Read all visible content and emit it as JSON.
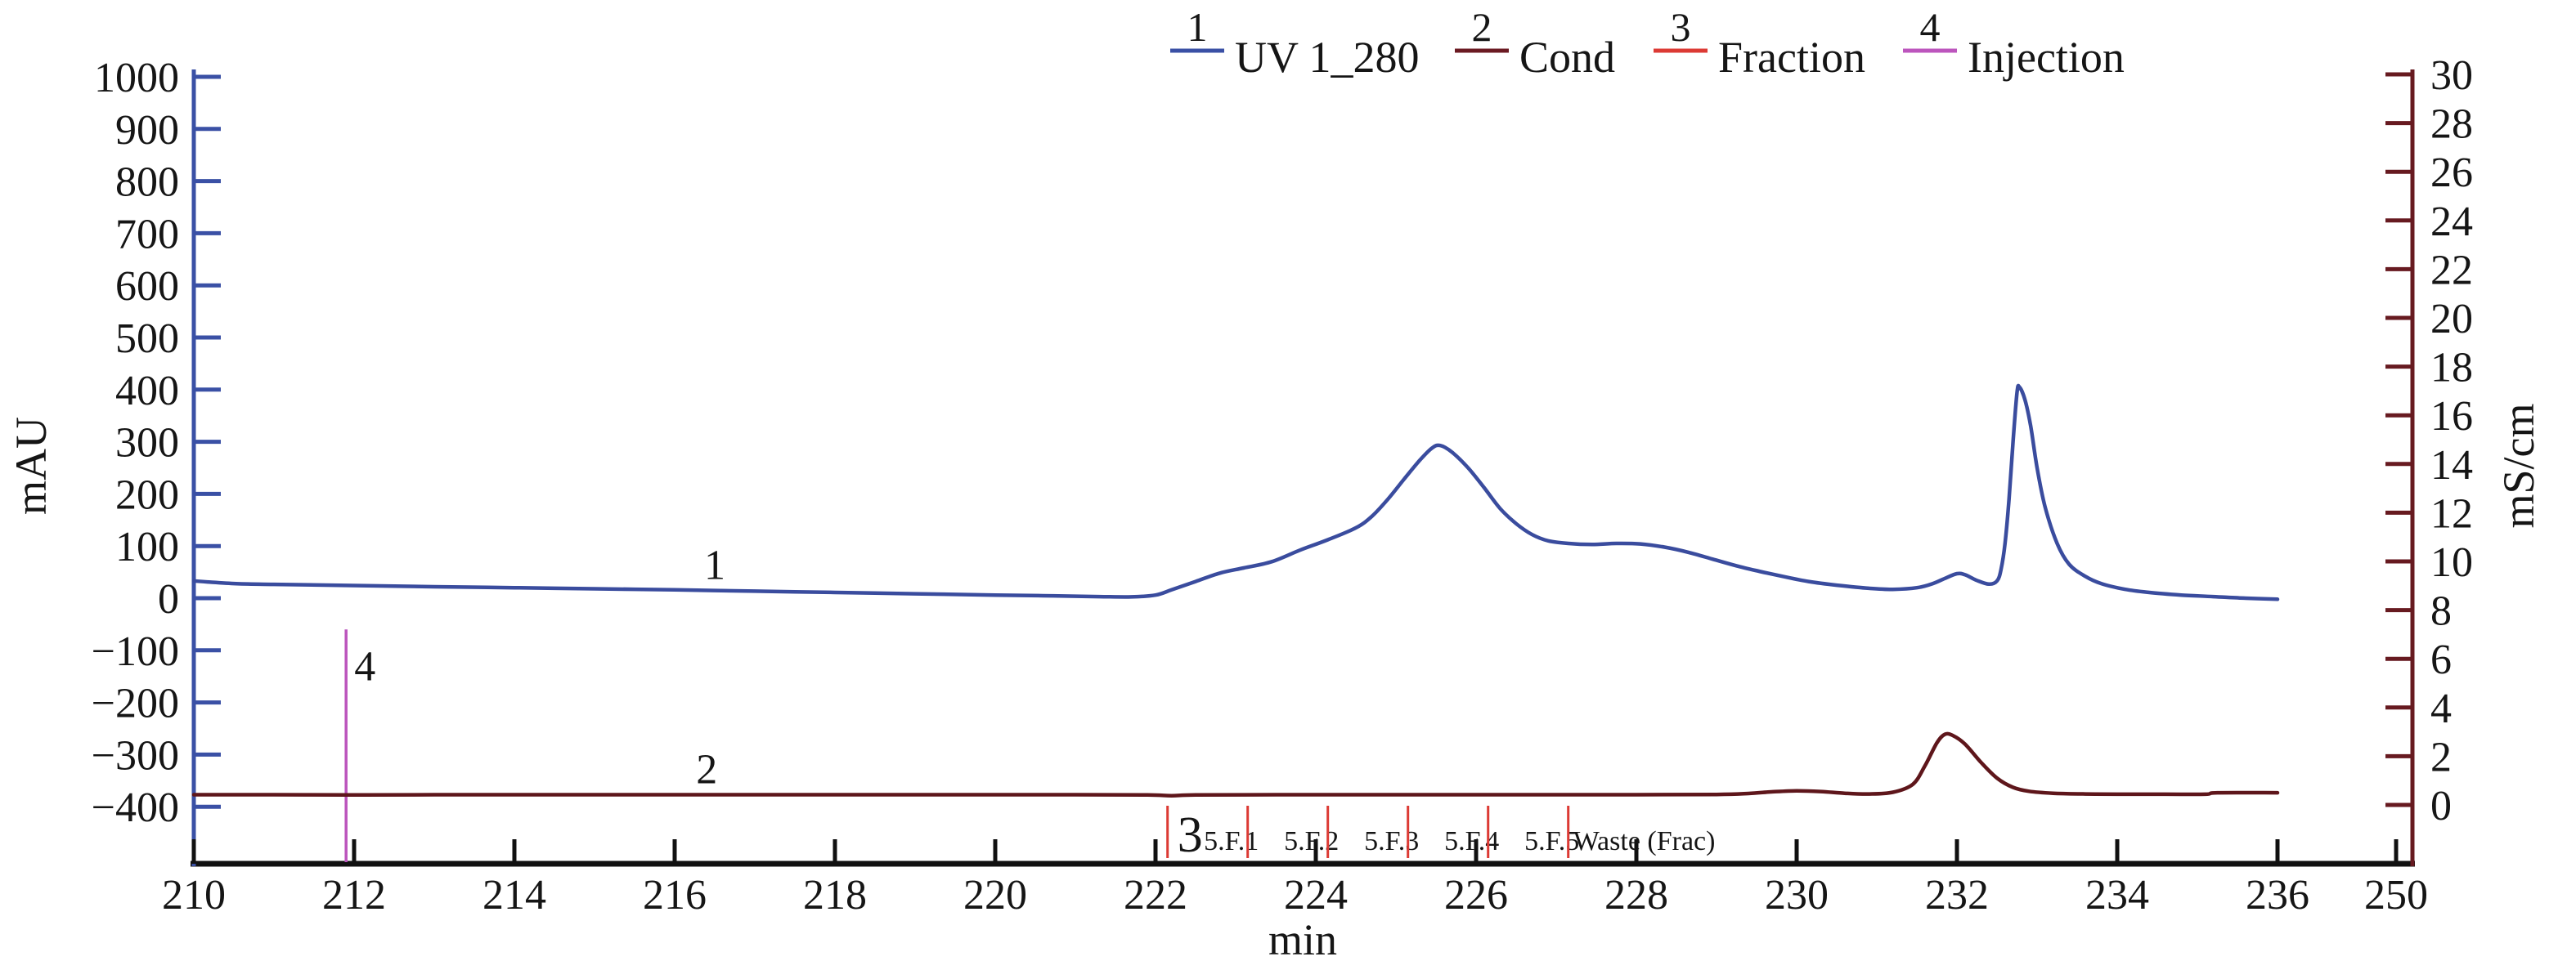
{
  "chart_data": {
    "type": "line",
    "title": "",
    "xlabel": "min",
    "xlim": [
      210,
      250
    ],
    "x_ticks": [
      210,
      212,
      214,
      216,
      218,
      220,
      222,
      224,
      226,
      228,
      230,
      232,
      234,
      236
    ],
    "x_break_tick": 250,
    "grid": false,
    "legend_position": "top",
    "left_axis": {
      "label": "mAU",
      "color": "#3A50A5",
      "ticks": [
        1000,
        900,
        800,
        700,
        600,
        500,
        400,
        300,
        200,
        100,
        0,
        -100,
        -200,
        -300,
        -400
      ],
      "lim": [
        -480,
        1010
      ]
    },
    "right_axis": {
      "label": "mS/cm",
      "color": "#671A20",
      "ticks": [
        30,
        28,
        26,
        24,
        22,
        20,
        18,
        16,
        14,
        12,
        10,
        8,
        6,
        4,
        2,
        0
      ],
      "lim": [
        -2.4,
        30.2
      ]
    },
    "legend": [
      {
        "index": "1",
        "label": "UV 1_280",
        "color": "#2F4DA8",
        "line_color": "#3A50A5"
      },
      {
        "index": "2",
        "label": "Cond",
        "color": "#6B1A22",
        "line_color": "#6B1A22"
      },
      {
        "index": "3",
        "label": "Fraction",
        "color": "#DC3A34",
        "line_color": "#DC3A34"
      },
      {
        "index": "4",
        "label": "Injection",
        "color": "#BC55BD",
        "line_color": "#BC55BD"
      }
    ],
    "series": [
      {
        "name": "UV 1_280",
        "axis": "left",
        "unit": "mAU",
        "color": "#3A4C9E",
        "curve_label": "1",
        "curve_label_time_min": 216.5,
        "points": [
          [
            210.0,
            33
          ],
          [
            210.5,
            28
          ],
          [
            211.0,
            26.5
          ],
          [
            211.9,
            24.5
          ],
          [
            213.0,
            22
          ],
          [
            214.0,
            20
          ],
          [
            215.0,
            18
          ],
          [
            216.0,
            16
          ],
          [
            217.0,
            13.5
          ],
          [
            218.0,
            11
          ],
          [
            219.0,
            8.5
          ],
          [
            220.0,
            6
          ],
          [
            220.7,
            4.5
          ],
          [
            221.3,
            3
          ],
          [
            221.7,
            2.5
          ],
          [
            222.0,
            6
          ],
          [
            222.2,
            16
          ],
          [
            222.5,
            32
          ],
          [
            222.8,
            48
          ],
          [
            223.1,
            58
          ],
          [
            223.45,
            70
          ],
          [
            223.8,
            92
          ],
          [
            224.15,
            112
          ],
          [
            224.5,
            135
          ],
          [
            224.7,
            157
          ],
          [
            224.9,
            190
          ],
          [
            225.1,
            228
          ],
          [
            225.3,
            265
          ],
          [
            225.45,
            288
          ],
          [
            225.55,
            293
          ],
          [
            225.7,
            280
          ],
          [
            225.9,
            250
          ],
          [
            226.1,
            212
          ],
          [
            226.3,
            172
          ],
          [
            226.5,
            143
          ],
          [
            226.7,
            122
          ],
          [
            226.9,
            110
          ],
          [
            227.15,
            105
          ],
          [
            227.45,
            103
          ],
          [
            227.75,
            105
          ],
          [
            228.05,
            104
          ],
          [
            228.35,
            98
          ],
          [
            228.65,
            88
          ],
          [
            228.95,
            75
          ],
          [
            229.25,
            62
          ],
          [
            229.55,
            51
          ],
          [
            229.85,
            41
          ],
          [
            230.15,
            32
          ],
          [
            230.5,
            25
          ],
          [
            230.9,
            19
          ],
          [
            231.2,
            17
          ],
          [
            231.5,
            20
          ],
          [
            231.7,
            28
          ],
          [
            231.85,
            38
          ],
          [
            232.0,
            47
          ],
          [
            232.1,
            45
          ],
          [
            232.25,
            34
          ],
          [
            232.4,
            27
          ],
          [
            232.5,
            33
          ],
          [
            232.55,
            55
          ],
          [
            232.6,
            105
          ],
          [
            232.65,
            190
          ],
          [
            232.7,
            300
          ],
          [
            232.75,
            395
          ],
          [
            232.78,
            405
          ],
          [
            232.85,
            380
          ],
          [
            232.92,
            330
          ],
          [
            233.0,
            250
          ],
          [
            233.1,
            175
          ],
          [
            233.25,
            105
          ],
          [
            233.4,
            65
          ],
          [
            233.6,
            42
          ],
          [
            233.8,
            28
          ],
          [
            234.1,
            17
          ],
          [
            234.4,
            11
          ],
          [
            234.8,
            6
          ],
          [
            235.2,
            3
          ],
          [
            235.6,
            0
          ],
          [
            236.0,
            -2
          ]
        ]
      },
      {
        "name": "Cond",
        "axis": "right",
        "unit": "mS/cm",
        "color": "#5E161B",
        "curve_label": "2",
        "curve_label_time_min": 216.4,
        "points": [
          [
            210.0,
            0.42
          ],
          [
            211.0,
            0.42
          ],
          [
            211.9,
            0.41
          ],
          [
            213.0,
            0.42
          ],
          [
            215.0,
            0.42
          ],
          [
            217.0,
            0.42
          ],
          [
            219.0,
            0.42
          ],
          [
            221.0,
            0.42
          ],
          [
            221.9,
            0.41
          ],
          [
            222.2,
            0.38
          ],
          [
            222.5,
            0.41
          ],
          [
            223.5,
            0.42
          ],
          [
            225.0,
            0.42
          ],
          [
            226.5,
            0.42
          ],
          [
            228.0,
            0.42
          ],
          [
            229.0,
            0.43
          ],
          [
            229.4,
            0.47
          ],
          [
            229.7,
            0.54
          ],
          [
            230.0,
            0.58
          ],
          [
            230.3,
            0.55
          ],
          [
            230.6,
            0.48
          ],
          [
            230.9,
            0.45
          ],
          [
            231.2,
            0.52
          ],
          [
            231.45,
            0.85
          ],
          [
            231.6,
            1.6
          ],
          [
            231.75,
            2.55
          ],
          [
            231.85,
            2.9
          ],
          [
            231.95,
            2.85
          ],
          [
            232.1,
            2.5
          ],
          [
            232.3,
            1.75
          ],
          [
            232.5,
            1.1
          ],
          [
            232.7,
            0.72
          ],
          [
            232.9,
            0.56
          ],
          [
            233.2,
            0.48
          ],
          [
            233.6,
            0.45
          ],
          [
            234.0,
            0.44
          ],
          [
            234.6,
            0.44
          ],
          [
            235.1,
            0.44
          ],
          [
            235.25,
            0.5
          ],
          [
            236.0,
            0.5
          ]
        ]
      }
    ],
    "injection": {
      "curve_label": "4",
      "color": "#BC55BD",
      "time_min": 211.9,
      "top_mAU": -60
    },
    "fractions": {
      "curve_label": "3",
      "color": "#DC3A34",
      "tick_times_min": [
        222.15,
        223.15,
        224.15,
        225.15,
        226.15,
        227.15
      ],
      "labels": [
        "5.F.1",
        "5.F.2",
        "5.F.3",
        "5.F.4",
        "5.F.5",
        "Waste (Frac)"
      ]
    }
  }
}
